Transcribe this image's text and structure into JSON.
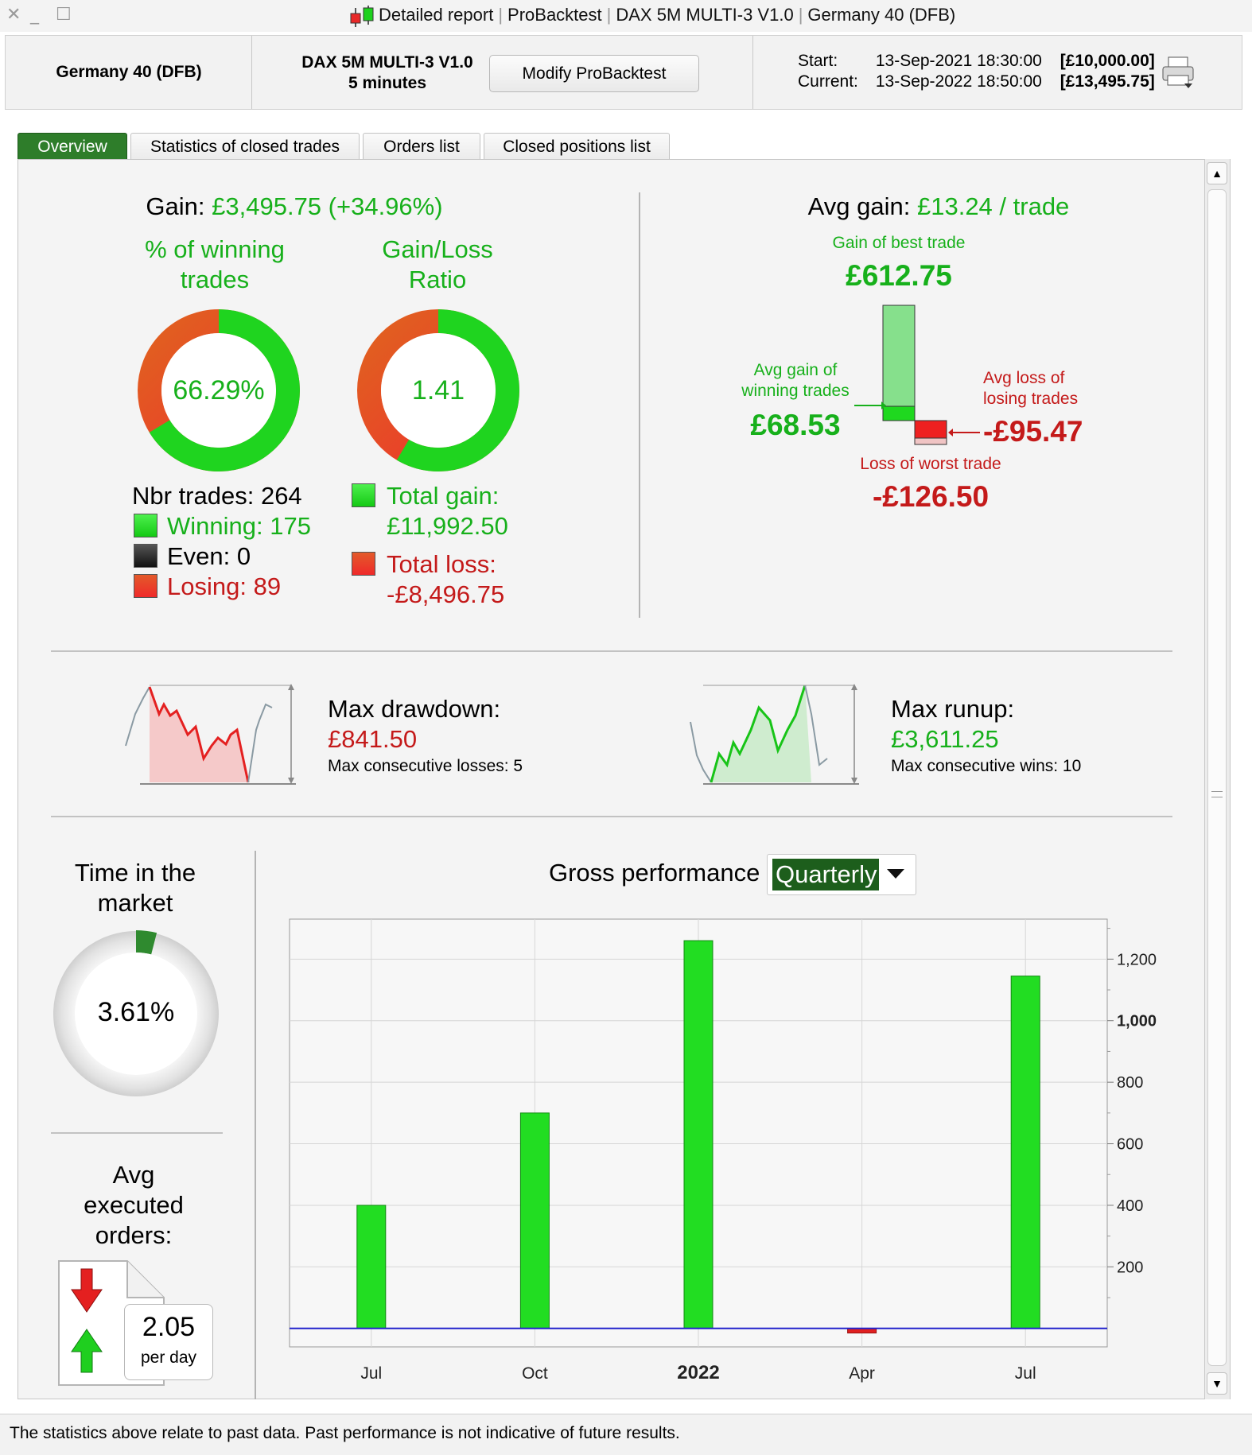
{
  "window": {
    "title_parts": [
      "Detailed report",
      "ProBacktest",
      "DAX 5M MULTI-3 V1.0",
      "Germany 40 (DFB)"
    ]
  },
  "header": {
    "instrument": "Germany 40 (DFB)",
    "strategy_name": "DAX 5M MULTI-3 V1.0",
    "timeframe": "5 minutes",
    "modify_button": "Modify ProBacktest",
    "start_label": "Start:",
    "start_date": "13-Sep-2021 18:30:00",
    "start_capital": "[£10,000.00]",
    "current_label": "Current:",
    "current_date": "13-Sep-2022 18:50:00",
    "current_capital": "[£13,495.75]"
  },
  "tabs": [
    {
      "label": "Overview",
      "active": true
    },
    {
      "label": "Statistics of closed trades",
      "active": false
    },
    {
      "label": "Orders list",
      "active": false
    },
    {
      "label": "Closed positions list",
      "active": false
    }
  ],
  "overview": {
    "gain_label": "Gain: ",
    "gain_value": "£3,495.75 (+34.96%)",
    "pct_winning_title_1": "% of winning",
    "pct_winning_title_2": "trades",
    "pct_winning_value": "66.29%",
    "pct_winning_fraction": 0.6629,
    "gl_ratio_title_1": "Gain/Loss",
    "gl_ratio_title_2": "Ratio",
    "gl_ratio_value": "1.41",
    "gl_ratio_gain_fraction": 0.5853,
    "nbr_trades": "Nbr trades: 264",
    "winning": "Winning: 175",
    "even": "Even: 0",
    "losing": "Losing: 89",
    "total_gain_label": "Total gain:",
    "total_gain_value": "£11,992.50",
    "total_loss_label": "Total loss:",
    "total_loss_value": "-£8,496.75",
    "avg_gain_label": "Avg gain: ",
    "avg_gain_value": "£13.24 / trade",
    "best_trade_label": "Gain of best trade",
    "best_trade_value": "£612.75",
    "avg_win_label_1": "Avg gain of",
    "avg_win_label_2": "winning trades",
    "avg_win_value": "£68.53",
    "avg_loss_label_1": "Avg loss of",
    "avg_loss_label_2": "losing trades",
    "avg_loss_value": "-£95.47",
    "worst_trade_label": "Loss of worst trade",
    "worst_trade_value": "-£126.50",
    "max_drawdown_label": "Max drawdown:",
    "max_drawdown_value": "£841.50",
    "max_consec_losses": "Max consecutive losses: 5",
    "max_runup_label": "Max runup:",
    "max_runup_value": "£3,611.25",
    "max_consec_wins": "Max consecutive wins: 10",
    "time_market_1": "Time in the",
    "time_market_2": "market",
    "time_market_value": "3.61%",
    "time_market_fraction": 0.0361,
    "avg_orders_1": "Avg",
    "avg_orders_2": "executed",
    "avg_orders_3": "orders:",
    "avg_orders_value": "2.05",
    "avg_orders_unit": "per day",
    "gross_perf_label": "Gross performance",
    "period_select": "Quarterly"
  },
  "chart_data": {
    "type": "bar",
    "categories": [
      "Jul",
      "Oct",
      "2022",
      "Apr",
      "Jul"
    ],
    "values": [
      400,
      700,
      1260,
      -15,
      1145
    ],
    "yticks": [
      200,
      400,
      600,
      800,
      1000,
      1200
    ],
    "ytick_labels": [
      "200",
      "400",
      "600",
      "800",
      "1,000",
      "1,200"
    ],
    "ylim": [
      -60,
      1330
    ],
    "colors": {
      "positive": "#22dd22",
      "negative": "#e02020",
      "zero_line": "#2222cc"
    },
    "grid": true
  },
  "footer": {
    "disclaimer": "The statistics above relate to past data. Past performance is not indicative of future results."
  }
}
